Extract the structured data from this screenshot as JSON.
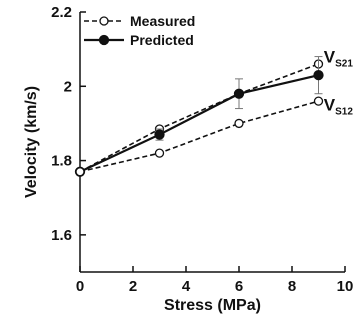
{
  "chart_data": {
    "type": "line",
    "title": "",
    "xlabel": "Stress (MPa)",
    "ylabel": "Velocity (km/s)",
    "xlim": [
      0,
      10
    ],
    "ylim": [
      1.5,
      2.2
    ],
    "xticks": [
      0,
      2,
      4,
      6,
      8,
      10
    ],
    "yticks": [
      1.6,
      1.8,
      2,
      2.2
    ],
    "ytick_labels": [
      "1.6",
      "1.8",
      "2",
      "2.2"
    ],
    "grid": false,
    "legend_position": "top-left",
    "legend": [
      {
        "label": "Measured",
        "style": "dashed",
        "marker": "open-circle"
      },
      {
        "label": "Predicted",
        "style": "solid",
        "marker": "filled-circle"
      }
    ],
    "series": [
      {
        "name": "Measured V_S21",
        "kind": "measured",
        "x": [
          0,
          3,
          6,
          9
        ],
        "y": [
          1.77,
          1.885,
          1.98,
          2.06
        ],
        "err": [
          0,
          0,
          0,
          0
        ]
      },
      {
        "name": "Predicted V_S21",
        "kind": "predicted",
        "x": [
          0,
          3,
          6,
          9
        ],
        "y": [
          1.77,
          1.87,
          1.98,
          2.03
        ],
        "err": [
          0,
          0.015,
          0.04,
          0.05
        ]
      },
      {
        "name": "Measured V_S12",
        "kind": "measured",
        "x": [
          0,
          3,
          6,
          9
        ],
        "y": [
          1.77,
          1.82,
          1.9,
          1.96
        ],
        "err": [
          0,
          0,
          0,
          0
        ]
      }
    ],
    "annotations": [
      {
        "main": "V",
        "sub": "S21",
        "x": 9.2,
        "y": 2.07
      },
      {
        "main": "V",
        "sub": "S12",
        "x": 9.2,
        "y": 1.94
      }
    ],
    "colors": {
      "line": "#111111",
      "errorbar": "#777777"
    }
  }
}
